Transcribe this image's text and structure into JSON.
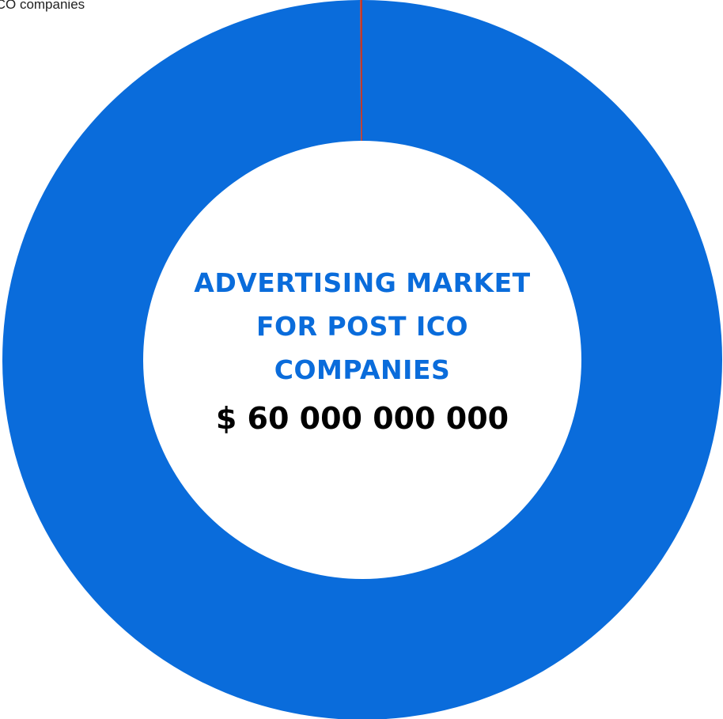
{
  "chart_data": {
    "type": "pie",
    "categories": [
      "Advertising market for post ICO companies",
      ""
    ],
    "values": [
      99.9,
      0.1
    ],
    "colors": [
      "#0a6cdb",
      "#c0392b"
    ],
    "corner_label": "ICO companies",
    "center_title": "ADVERTISING MARKET FOR POST ICO COMPANIES",
    "center_amount": "$ 60 000 000 000",
    "legend": "none"
  }
}
